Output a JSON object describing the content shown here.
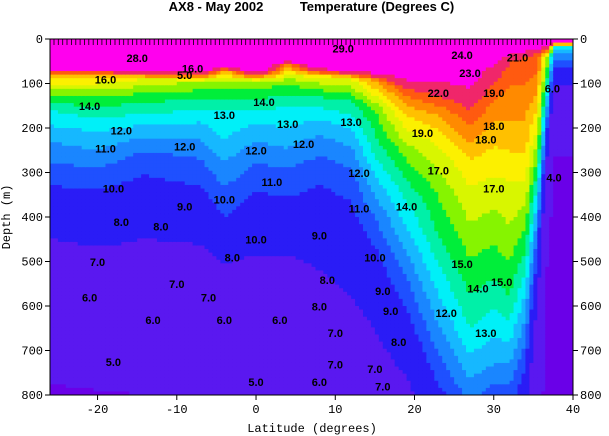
{
  "chart_data": {
    "type": "heatmap",
    "title": "AX8 - May 2002",
    "subtitle": "Temperature (Degrees C)",
    "xlabel": "Latitude (degrees)",
    "ylabel": "Depth (m)",
    "xlim": [
      -26,
      40
    ],
    "ylim": [
      800,
      0
    ],
    "x_ticks": [
      -20,
      -10,
      0,
      10,
      20,
      30,
      40
    ],
    "y_ticks": [
      0,
      100,
      200,
      300,
      400,
      500,
      600,
      700,
      800
    ],
    "color_levels": [
      {
        "min": 3,
        "max": 4,
        "color": "#6a00e8"
      },
      {
        "min": 4,
        "max": 8,
        "color": "#5a18f0"
      },
      {
        "min": 8,
        "max": 10,
        "color": "#2a1cf6"
      },
      {
        "min": 10,
        "max": 11,
        "color": "#1f50ff"
      },
      {
        "min": 11,
        "max": 12,
        "color": "#1a86ff"
      },
      {
        "min": 12,
        "max": 13,
        "color": "#16b8ff"
      },
      {
        "min": 13,
        "max": 14,
        "color": "#00f0f8"
      },
      {
        "min": 14,
        "max": 15,
        "color": "#00f0a8"
      },
      {
        "min": 15,
        "max": 16,
        "color": "#00ee3a"
      },
      {
        "min": 16,
        "max": 17,
        "color": "#86f400"
      },
      {
        "min": 17,
        "max": 18,
        "color": "#d8f600"
      },
      {
        "min": 18,
        "max": 19,
        "color": "#fcf000"
      },
      {
        "min": 19,
        "max": 20,
        "color": "#ffc000"
      },
      {
        "min": 20,
        "max": 21,
        "color": "#ff8a00"
      },
      {
        "min": 21,
        "max": 22,
        "color": "#ff5a10"
      },
      {
        "min": 22,
        "max": 24,
        "color": "#f0266a"
      },
      {
        "min": 24,
        "max": 30,
        "color": "#ff00ee"
      }
    ],
    "sections": [
      {
        "lat": -26,
        "profile": [
          [
            0,
            29
          ],
          [
            60,
            28
          ],
          [
            80,
            20
          ],
          [
            110,
            17
          ],
          [
            160,
            14
          ],
          [
            230,
            12
          ],
          [
            300,
            10.5
          ],
          [
            420,
            8.5
          ],
          [
            560,
            6
          ],
          [
            680,
            4.8
          ],
          [
            800,
            3.8
          ]
        ]
      },
      {
        "lat": -20,
        "profile": [
          [
            0,
            29
          ],
          [
            55,
            28
          ],
          [
            85,
            19
          ],
          [
            130,
            16
          ],
          [
            190,
            13.5
          ],
          [
            250,
            12
          ],
          [
            320,
            10.3
          ],
          [
            440,
            8.5
          ],
          [
            560,
            6.3
          ],
          [
            700,
            4.8
          ],
          [
            800,
            3.9
          ]
        ]
      },
      {
        "lat": -14,
        "profile": [
          [
            0,
            29
          ],
          [
            60,
            28
          ],
          [
            90,
            18
          ],
          [
            130,
            15.5
          ],
          [
            180,
            13.5
          ],
          [
            220,
            12
          ],
          [
            270,
            10.5
          ],
          [
            400,
            8.7
          ],
          [
            540,
            6.7
          ],
          [
            680,
            5
          ],
          [
            800,
            4
          ]
        ]
      },
      {
        "lat": -7,
        "profile": [
          [
            0,
            29
          ],
          [
            65,
            28
          ],
          [
            95,
            17
          ],
          [
            135,
            15
          ],
          [
            180,
            13.2
          ],
          [
            225,
            12
          ],
          [
            270,
            11
          ],
          [
            380,
            9.2
          ],
          [
            530,
            7
          ],
          [
            680,
            5.2
          ],
          [
            800,
            4.1
          ]
        ]
      },
      {
        "lat": -4,
        "profile": [
          [
            0,
            29
          ],
          [
            50,
            28
          ],
          [
            75,
            19
          ],
          [
            110,
            16
          ],
          [
            160,
            14
          ],
          [
            230,
            13
          ],
          [
            300,
            11.5
          ],
          [
            400,
            10
          ],
          [
            530,
            7.5
          ],
          [
            680,
            5.3
          ],
          [
            800,
            4.2
          ]
        ]
      },
      {
        "lat": 0,
        "profile": [
          [
            0,
            29
          ],
          [
            65,
            28
          ],
          [
            95,
            17
          ],
          [
            135,
            15
          ],
          [
            175,
            13.5
          ],
          [
            215,
            12.3
          ],
          [
            260,
            11.3
          ],
          [
            370,
            9.6
          ],
          [
            520,
            7.5
          ],
          [
            680,
            5.6
          ],
          [
            800,
            4.4
          ]
        ]
      },
      {
        "lat": 4,
        "profile": [
          [
            0,
            29
          ],
          [
            40,
            28
          ],
          [
            60,
            20
          ],
          [
            100,
            16
          ],
          [
            150,
            14
          ],
          [
            210,
            12.8
          ],
          [
            290,
            11
          ],
          [
            400,
            9.3
          ],
          [
            540,
            7.2
          ],
          [
            690,
            5.6
          ],
          [
            800,
            4.5
          ]
        ]
      },
      {
        "lat": 8,
        "profile": [
          [
            0,
            29
          ],
          [
            55,
            28
          ],
          [
            85,
            18
          ],
          [
            130,
            15
          ],
          [
            180,
            13
          ],
          [
            230,
            11.6
          ],
          [
            300,
            10.3
          ],
          [
            420,
            9
          ],
          [
            560,
            7.6
          ],
          [
            700,
            6.3
          ],
          [
            800,
            5.2
          ]
        ]
      },
      {
        "lat": 12,
        "profile": [
          [
            0,
            29
          ],
          [
            60,
            28
          ],
          [
            90,
            18
          ],
          [
            140,
            15
          ],
          [
            200,
            13
          ],
          [
            260,
            11.6
          ],
          [
            320,
            10.5
          ],
          [
            440,
            9.2
          ],
          [
            580,
            8
          ],
          [
            720,
            6.8
          ],
          [
            800,
            6
          ]
        ]
      },
      {
        "lat": 15,
        "profile": [
          [
            0,
            29
          ],
          [
            60,
            28
          ],
          [
            95,
            20
          ],
          [
            160,
            16
          ],
          [
            240,
            14.5
          ],
          [
            320,
            12.7
          ],
          [
            400,
            11
          ],
          [
            500,
            9.5
          ],
          [
            620,
            8.3
          ],
          [
            740,
            7.2
          ],
          [
            800,
            6.4
          ]
        ]
      },
      {
        "lat": 19,
        "profile": [
          [
            0,
            29
          ],
          [
            75,
            26
          ],
          [
            110,
            22
          ],
          [
            160,
            19.5
          ],
          [
            250,
            16.5
          ],
          [
            350,
            14.3
          ],
          [
            450,
            12.5
          ],
          [
            560,
            10.6
          ],
          [
            680,
            9
          ],
          [
            760,
            8
          ],
          [
            800,
            7.5
          ]
        ]
      },
      {
        "lat": 23,
        "profile": [
          [
            0,
            29
          ],
          [
            80,
            25
          ],
          [
            110,
            23
          ],
          [
            170,
            20
          ],
          [
            240,
            18
          ],
          [
            340,
            16.2
          ],
          [
            440,
            15
          ],
          [
            540,
            13.5
          ],
          [
            640,
            12
          ],
          [
            740,
            10.5
          ],
          [
            800,
            9.6
          ]
        ]
      },
      {
        "lat": 27,
        "profile": [
          [
            0,
            29
          ],
          [
            90,
            25
          ],
          [
            140,
            22.5
          ],
          [
            200,
            21
          ],
          [
            280,
            18.7
          ],
          [
            380,
            17.4
          ],
          [
            470,
            16.3
          ],
          [
            560,
            15.2
          ],
          [
            650,
            14
          ],
          [
            750,
            12.3
          ],
          [
            800,
            11.3
          ]
        ]
      },
      {
        "lat": 30,
        "profile": [
          [
            0,
            29
          ],
          [
            70,
            23
          ],
          [
            110,
            21.5
          ],
          [
            160,
            20.5
          ],
          [
            240,
            19
          ],
          [
            340,
            17.5
          ],
          [
            440,
            16.3
          ],
          [
            540,
            15
          ],
          [
            630,
            13.6
          ],
          [
            730,
            12
          ],
          [
            800,
            10.5
          ]
        ]
      },
      {
        "lat": 32,
        "profile": [
          [
            0,
            29
          ],
          [
            50,
            22
          ],
          [
            100,
            21
          ],
          [
            150,
            20.5
          ],
          [
            220,
            19.5
          ],
          [
            320,
            18
          ],
          [
            420,
            17
          ],
          [
            500,
            16
          ],
          [
            580,
            15
          ],
          [
            660,
            13.5
          ],
          [
            800,
            10.5
          ]
        ]
      },
      {
        "lat": 34,
        "profile": [
          [
            0,
            29
          ],
          [
            40,
            21.8
          ],
          [
            100,
            21
          ],
          [
            180,
            20
          ],
          [
            260,
            19
          ],
          [
            350,
            17.5
          ],
          [
            430,
            16
          ],
          [
            500,
            14.5
          ],
          [
            570,
            13
          ],
          [
            680,
            11
          ],
          [
            800,
            9
          ]
        ]
      },
      {
        "lat": 35.5,
        "profile": [
          [
            0,
            29
          ],
          [
            30,
            22
          ],
          [
            120,
            20
          ],
          [
            220,
            17.5
          ],
          [
            300,
            15
          ],
          [
            380,
            12.5
          ],
          [
            460,
            10.5
          ],
          [
            560,
            8.5
          ],
          [
            680,
            6.5
          ],
          [
            800,
            5
          ]
        ]
      },
      {
        "lat": 36.8,
        "profile": [
          [
            0,
            29
          ],
          [
            40,
            17
          ],
          [
            120,
            13
          ],
          [
            220,
            9
          ],
          [
            320,
            6
          ],
          [
            450,
            4
          ],
          [
            600,
            3.5
          ],
          [
            800,
            3.2
          ]
        ]
      },
      {
        "lat": 37.6,
        "profile": [
          [
            0,
            29
          ],
          [
            20,
            13
          ],
          [
            80,
            9
          ],
          [
            180,
            5
          ],
          [
            300,
            3.5
          ],
          [
            500,
            3.2
          ],
          [
            800,
            3
          ]
        ]
      }
    ],
    "contour_labels": [
      {
        "x": -20,
        "y": 510,
        "text": "7.0"
      },
      {
        "x": -21,
        "y": 590,
        "text": "6.0"
      },
      {
        "x": -18,
        "y": 735,
        "text": "5.0"
      },
      {
        "x": -17,
        "y": 420,
        "text": "8.0"
      },
      {
        "x": -18,
        "y": 345,
        "text": "10.0"
      },
      {
        "x": -19,
        "y": 255,
        "text": "11.0"
      },
      {
        "x": -17,
        "y": 215,
        "text": "12.0"
      },
      {
        "x": -21,
        "y": 160,
        "text": "14.0"
      },
      {
        "x": -19,
        "y": 100,
        "text": "16.0"
      },
      {
        "x": -9,
        "y": 385,
        "text": "9.0"
      },
      {
        "x": -12,
        "y": 430,
        "text": "8.0"
      },
      {
        "x": -10,
        "y": 560,
        "text": "7.0"
      },
      {
        "x": -6,
        "y": 590,
        "text": "7.0"
      },
      {
        "x": -13,
        "y": 640,
        "text": "6.0"
      },
      {
        "x": -4,
        "y": 640,
        "text": "6.0"
      },
      {
        "x": -9,
        "y": 250,
        "text": "12.0"
      },
      {
        "x": -4,
        "y": 180,
        "text": "13.0"
      },
      {
        "x": -4,
        "y": 370,
        "text": "10.0"
      },
      {
        "x": -3,
        "y": 500,
        "text": "8.0"
      },
      {
        "x": -8,
        "y": 75,
        "text": "16.0"
      },
      {
        "x": 0,
        "y": 260,
        "text": "12.0"
      },
      {
        "x": 1,
        "y": 150,
        "text": "14.0"
      },
      {
        "x": 0,
        "y": 460,
        "text": "10.0"
      },
      {
        "x": 2,
        "y": 330,
        "text": "11.0"
      },
      {
        "x": 3,
        "y": 640,
        "text": "6.0"
      },
      {
        "x": 4,
        "y": 200,
        "text": "13.0"
      },
      {
        "x": 6,
        "y": 245,
        "text": "12.0"
      },
      {
        "x": 8,
        "y": 450,
        "text": "9.0"
      },
      {
        "x": 9,
        "y": 550,
        "text": "8.0"
      },
      {
        "x": 10,
        "y": 670,
        "text": "7.0"
      },
      {
        "x": 8,
        "y": 610,
        "text": "8.0"
      },
      {
        "x": 10,
        "y": 740,
        "text": "7.0"
      },
      {
        "x": 12,
        "y": 195,
        "text": "13.0"
      },
      {
        "x": 13,
        "y": 310,
        "text": "12.0"
      },
      {
        "x": 13,
        "y": 390,
        "text": "11.0"
      },
      {
        "x": 15,
        "y": 500,
        "text": "10.0"
      },
      {
        "x": 16,
        "y": 575,
        "text": "9.0"
      },
      {
        "x": 17,
        "y": 620,
        "text": "9.0"
      },
      {
        "x": 15,
        "y": 750,
        "text": "7.0"
      },
      {
        "x": 18,
        "y": 690,
        "text": "8.0"
      },
      {
        "x": 19,
        "y": 385,
        "text": "14.0"
      },
      {
        "x": 21,
        "y": 220,
        "text": "19.0"
      },
      {
        "x": 23,
        "y": 305,
        "text": "17.0"
      },
      {
        "x": 26,
        "y": 515,
        "text": "15.0"
      },
      {
        "x": 24,
        "y": 625,
        "text": "12.0"
      },
      {
        "x": 29,
        "y": 670,
        "text": "13.0"
      },
      {
        "x": 28,
        "y": 570,
        "text": "14.0"
      },
      {
        "x": 31,
        "y": 555,
        "text": "15.0"
      },
      {
        "x": 29,
        "y": 235,
        "text": "18.0"
      },
      {
        "x": 30,
        "y": 345,
        "text": "17.0"
      },
      {
        "x": 30,
        "y": 205,
        "text": "18.0"
      },
      {
        "x": 30,
        "y": 130,
        "text": "19.0"
      },
      {
        "x": 23,
        "y": 130,
        "text": "22.0"
      },
      {
        "x": 27,
        "y": 85,
        "text": "23.0"
      },
      {
        "x": 33,
        "y": 50,
        "text": "21.0"
      },
      {
        "x": 26,
        "y": 45,
        "text": "24.0"
      },
      {
        "x": -9,
        "y": 90,
        "text": "5.0"
      },
      {
        "x": 0,
        "y": 780,
        "text": "5.0"
      },
      {
        "x": 8,
        "y": 780,
        "text": "6.0"
      },
      {
        "x": 16,
        "y": 790,
        "text": "7.0"
      },
      {
        "x": 37.6,
        "y": 320,
        "text": "4.0"
      },
      {
        "x": 37.4,
        "y": 120,
        "text": "6.0"
      },
      {
        "x": 11,
        "y": 30,
        "text": "29.0"
      },
      {
        "x": -15,
        "y": 52,
        "text": "28.0"
      }
    ],
    "probe_marks": "dense",
    "grid": false
  }
}
